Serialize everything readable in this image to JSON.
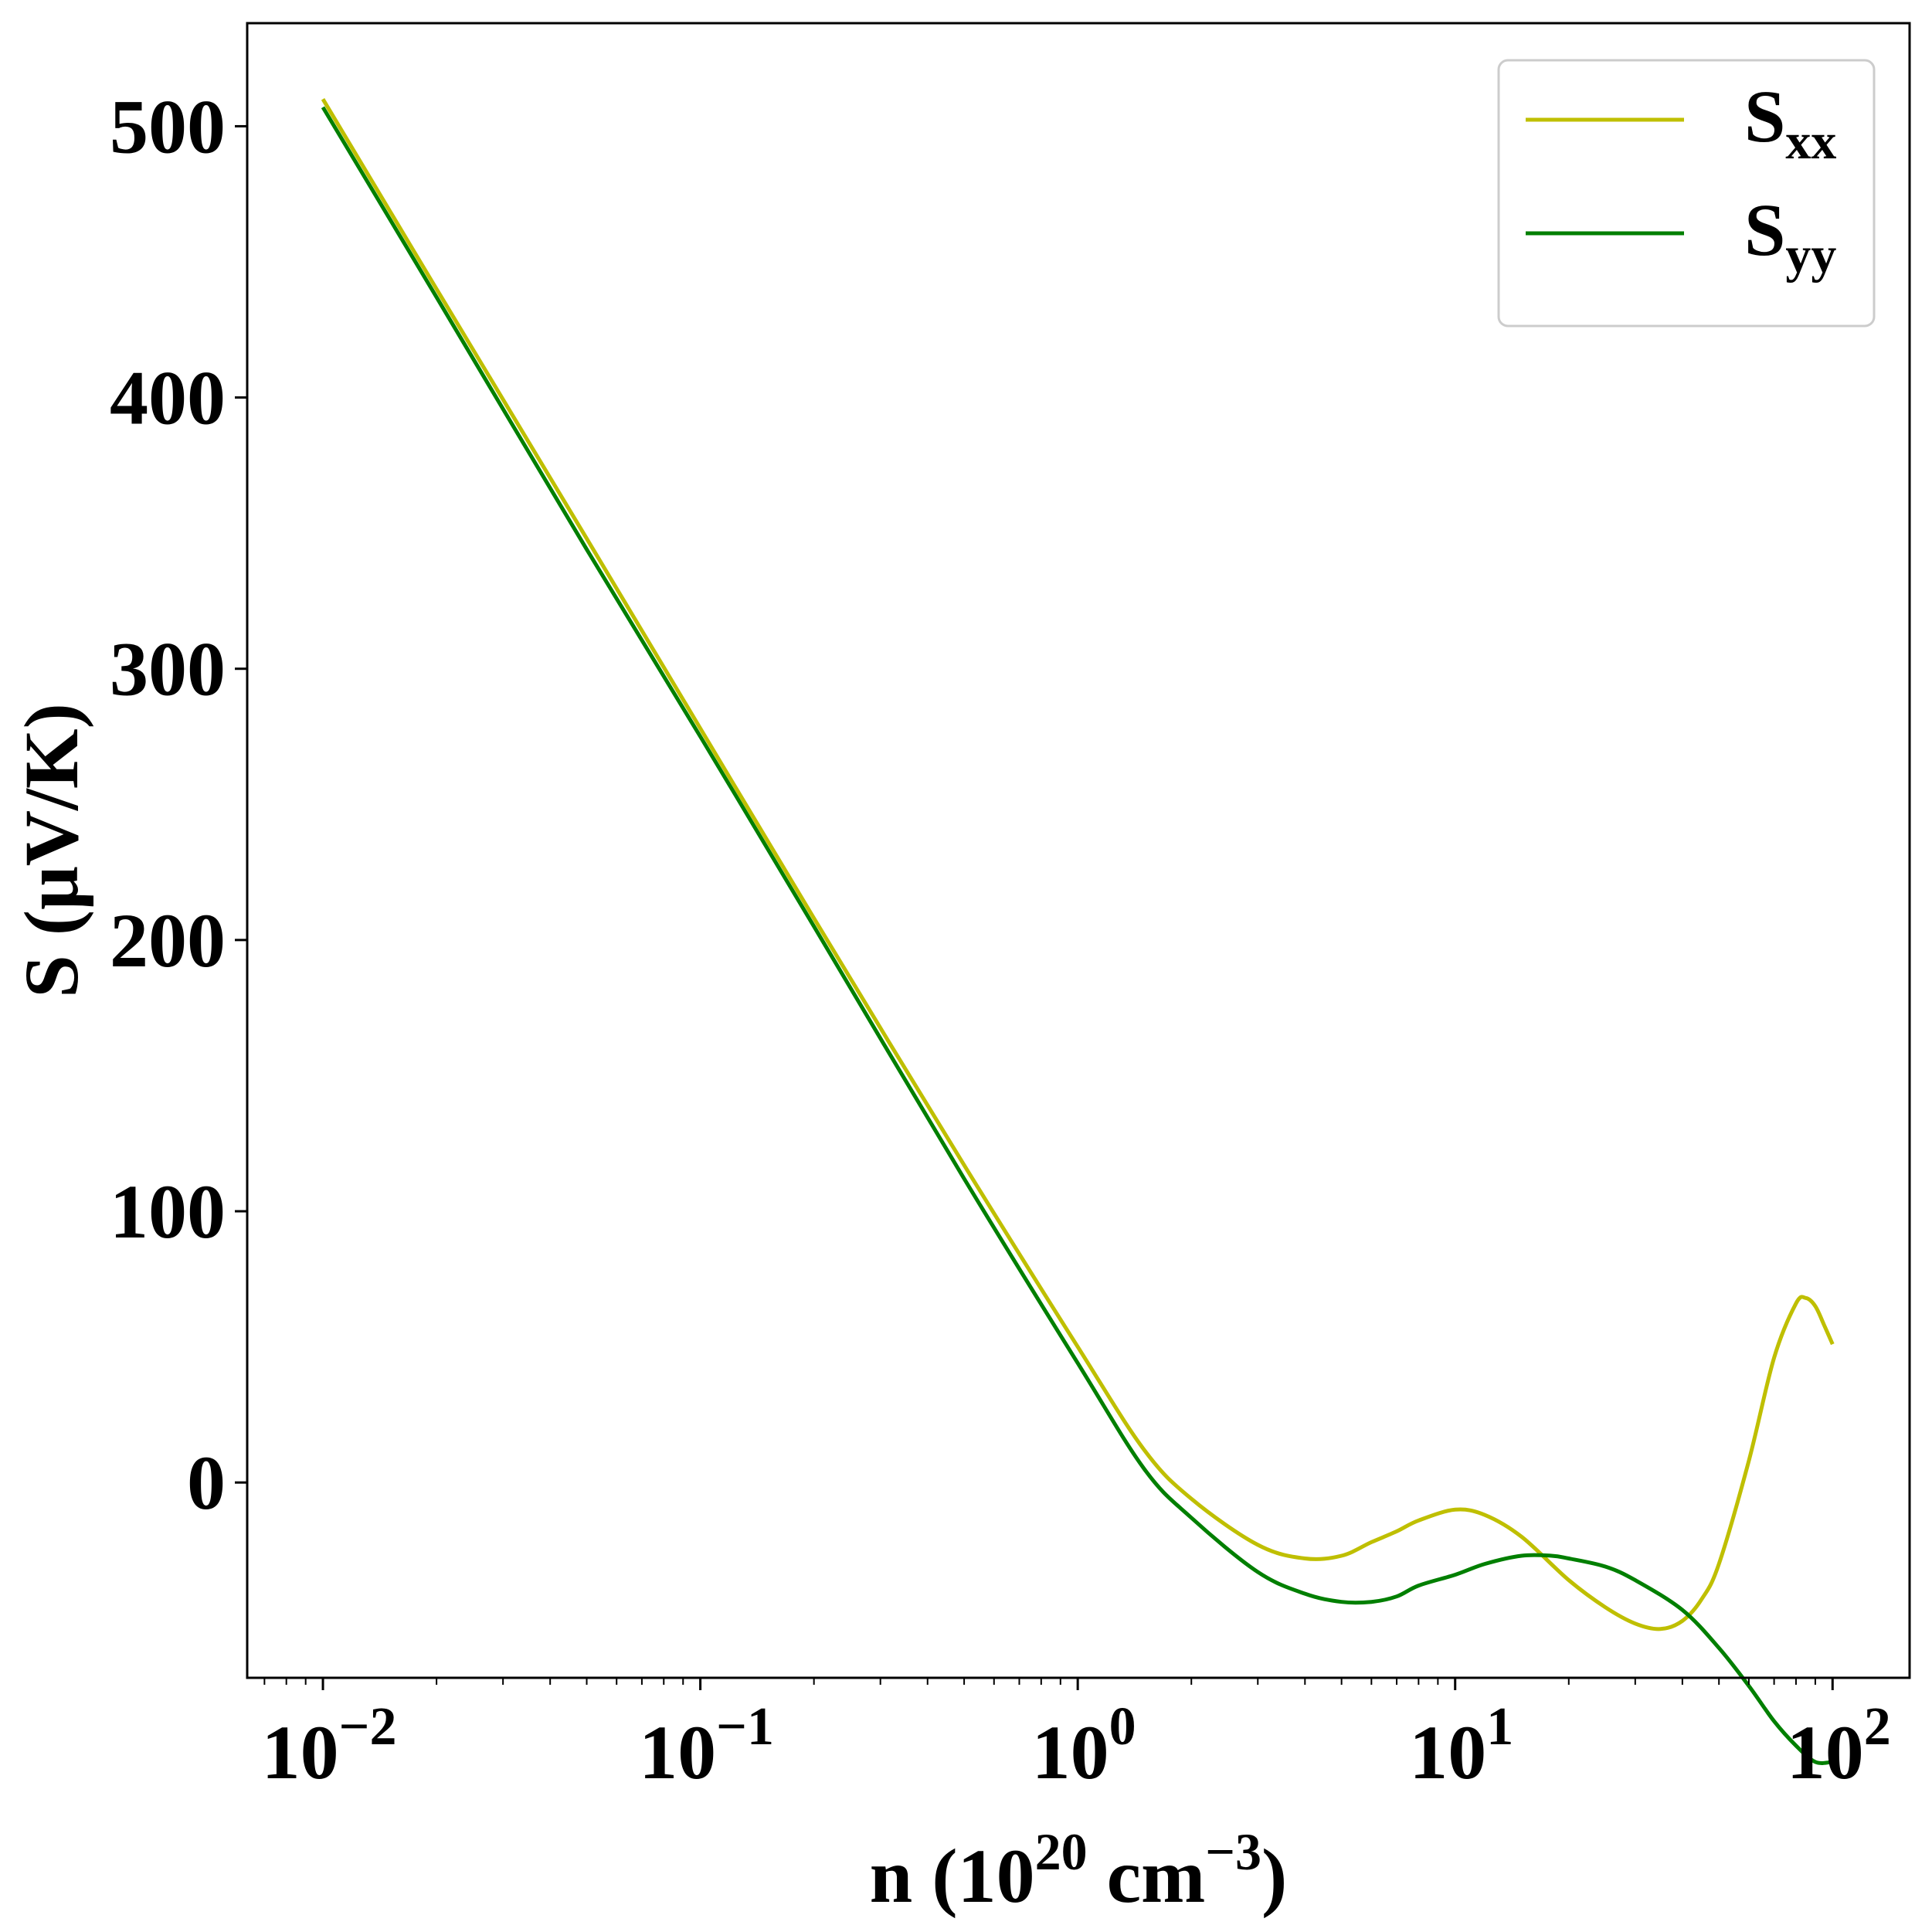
{
  "chart_data": {
    "type": "line",
    "x_scale": "log",
    "xlabel": {
      "base": "n (10",
      "sup1": "20",
      "mid": " cm",
      "sup2": "−3",
      "end": ")"
    },
    "ylabel": "S (μV/K)",
    "xlim": [
      0.0063,
      160
    ],
    "ylim": [
      -72,
      538
    ],
    "x_ticks": [
      {
        "value": 0.01,
        "base": "10",
        "exp": "−2"
      },
      {
        "value": 0.1,
        "base": "10",
        "exp": "−1"
      },
      {
        "value": 1,
        "base": "10",
        "exp": "0"
      },
      {
        "value": 10,
        "base": "10",
        "exp": "1"
      },
      {
        "value": 100,
        "base": "10",
        "exp": "2"
      }
    ],
    "y_ticks": [
      0,
      100,
      200,
      300,
      400,
      500
    ],
    "grid": false,
    "legend_position": "top-right",
    "series": [
      {
        "name": "S",
        "sub": "xx",
        "color": "#bfbf00",
        "points": [
          [
            0.01,
            510
          ],
          [
            0.02,
            440
          ],
          [
            0.05,
            348
          ],
          [
            0.1,
            278
          ],
          [
            0.2,
            208
          ],
          [
            0.5,
            117
          ],
          [
            1,
            50
          ],
          [
            1.5,
            12
          ],
          [
            2,
            -6
          ],
          [
            3,
            -23
          ],
          [
            4,
            -28
          ],
          [
            5,
            -27
          ],
          [
            6,
            -22
          ],
          [
            7,
            -18
          ],
          [
            8,
            -14
          ],
          [
            10,
            -10
          ],
          [
            12,
            -12
          ],
          [
            15,
            -20
          ],
          [
            20,
            -36
          ],
          [
            25,
            -46
          ],
          [
            30,
            -52
          ],
          [
            35,
            -54
          ],
          [
            40,
            -51
          ],
          [
            45,
            -43
          ],
          [
            50,
            -30
          ],
          [
            60,
            8
          ],
          [
            70,
            46
          ],
          [
            80,
            66
          ],
          [
            85,
            68
          ],
          [
            90,
            65
          ],
          [
            95,
            58
          ],
          [
            100,
            51
          ]
        ]
      },
      {
        "name": "S",
        "sub": "yy",
        "color": "#007f00",
        "points": [
          [
            0.01,
            507
          ],
          [
            0.02,
            437
          ],
          [
            0.05,
            344
          ],
          [
            0.1,
            275
          ],
          [
            0.2,
            205
          ],
          [
            0.5,
            112
          ],
          [
            1,
            44
          ],
          [
            1.5,
            5
          ],
          [
            2,
            -13
          ],
          [
            3,
            -33
          ],
          [
            4,
            -41
          ],
          [
            5,
            -44
          ],
          [
            6,
            -44
          ],
          [
            7,
            -42
          ],
          [
            8,
            -38
          ],
          [
            10,
            -34
          ],
          [
            12,
            -30
          ],
          [
            15,
            -27
          ],
          [
            18,
            -27
          ],
          [
            20,
            -28
          ],
          [
            25,
            -31
          ],
          [
            30,
            -36
          ],
          [
            40,
            -47
          ],
          [
            50,
            -61
          ],
          [
            60,
            -75
          ],
          [
            70,
            -88
          ],
          [
            80,
            -97
          ],
          [
            90,
            -103
          ],
          [
            100,
            -103
          ]
        ]
      }
    ]
  }
}
